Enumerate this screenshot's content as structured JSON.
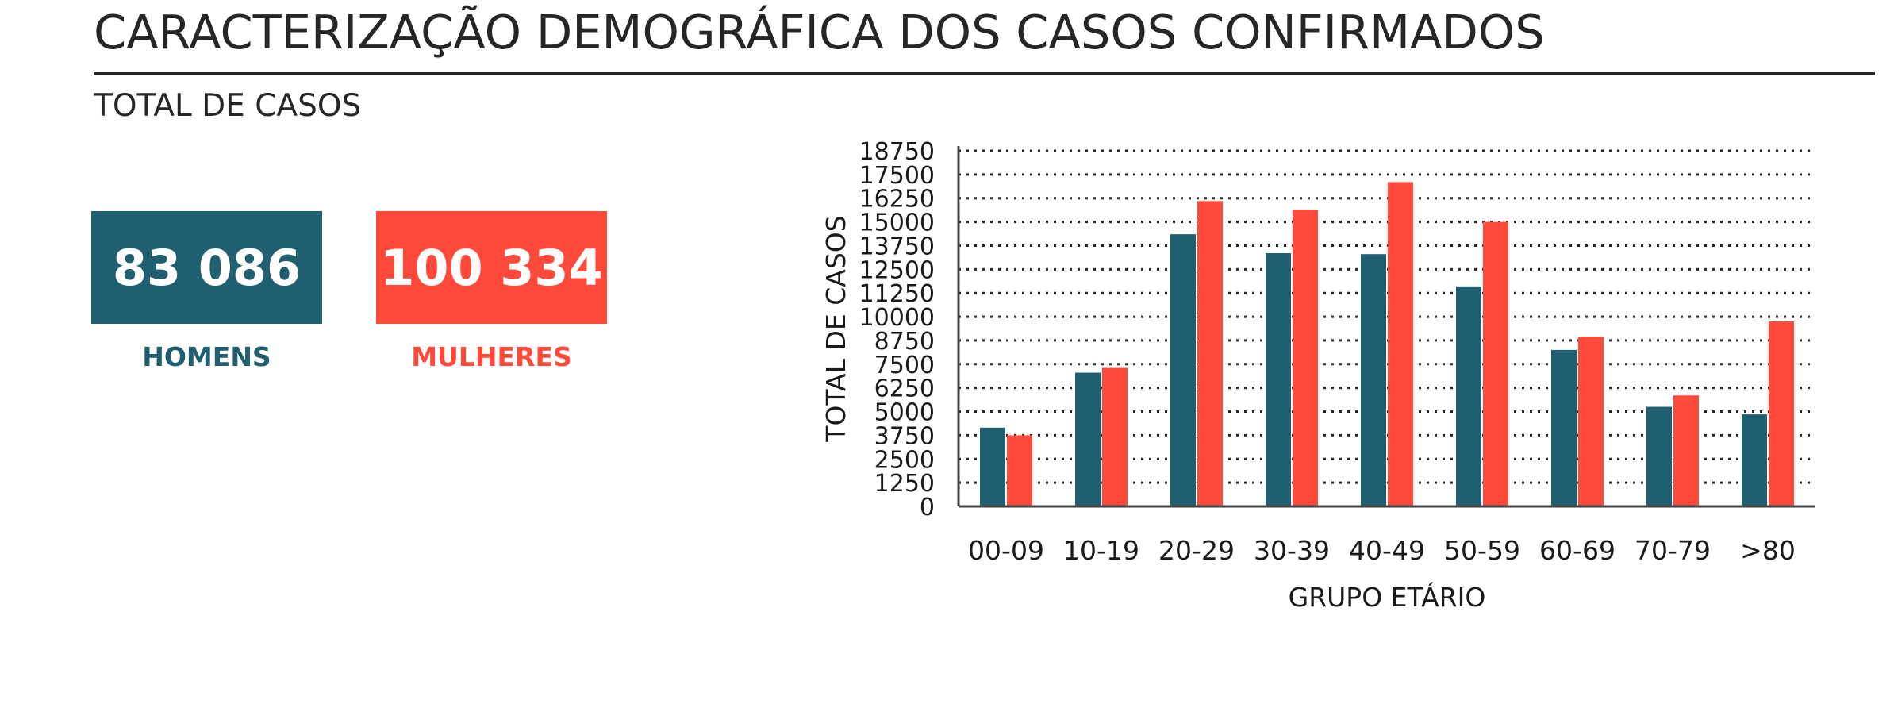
{
  "header": {
    "title": "CARACTERIZAÇÃO DEMOGRÁFICA DOS CASOS CONFIRMADOS",
    "subtitle": "TOTAL DE CASOS"
  },
  "totals": {
    "men": {
      "value": "83 086",
      "label": "HOMENS",
      "color": "#1f5f6f"
    },
    "women": {
      "value": "100 334",
      "label": "MULHERES",
      "color": "#ff4a3b"
    }
  },
  "chart_data": {
    "type": "bar",
    "categories": [
      "00-09",
      "10-19",
      "20-29",
      "30-39",
      "40-49",
      "50-59",
      "60-69",
      "70-79",
      ">80"
    ],
    "series": [
      {
        "name": "HOMENS",
        "color": "#1f5f6f",
        "values": [
          4150,
          7050,
          14350,
          13350,
          13300,
          11600,
          8250,
          5250,
          4850
        ]
      },
      {
        "name": "MULHERES",
        "color": "#ff4a3b",
        "values": [
          3750,
          7300,
          16100,
          15650,
          17100,
          15000,
          8950,
          5850,
          9750
        ]
      }
    ],
    "xlabel": "GRUPO ETÁRIO",
    "ylabel": "TOTAL DE CASOS",
    "ylim": [
      0,
      18750
    ],
    "yticks": [
      "0",
      "1250",
      "2500",
      "3750",
      "5000",
      "6250",
      "7500",
      "8750",
      "10000",
      "11250",
      "12500",
      "13750",
      "15000",
      "16250",
      "17500",
      "18750"
    ],
    "grid": "dotted horizontal",
    "legend": "none"
  }
}
